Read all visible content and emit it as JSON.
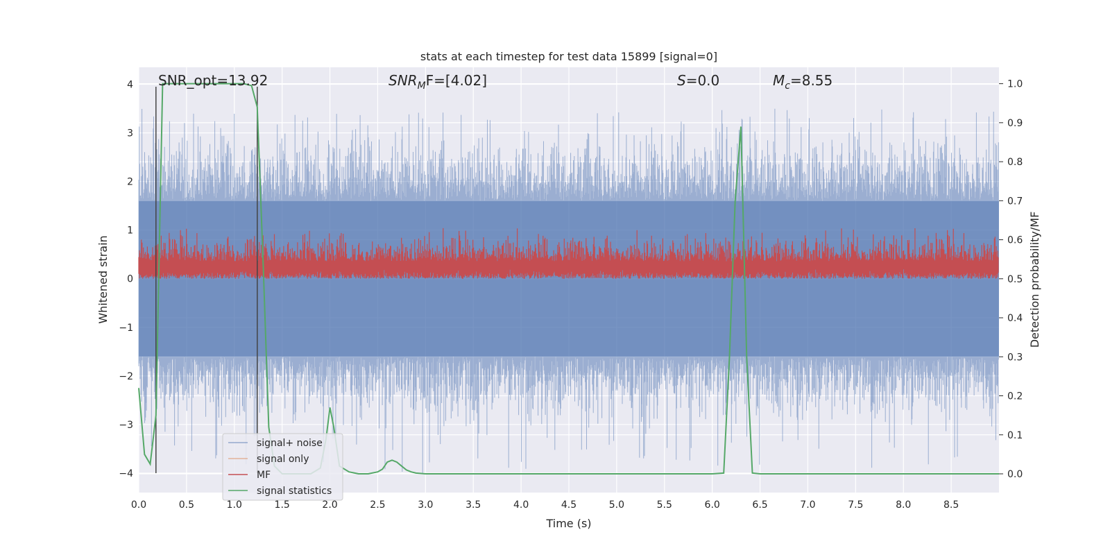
{
  "chart_data": {
    "type": "line",
    "title": "stats at each timestep for test data 15899 [signal=0]",
    "xlabel": "Time (s)",
    "ylabel": "Whitened strain",
    "y2label": "Detection probability/MF",
    "xlim": [
      0.0,
      9.0
    ],
    "ylim": [
      -4.4,
      4.35
    ],
    "y2lim": [
      -0.048,
      1.042
    ],
    "xticks": [
      0.0,
      0.5,
      1.0,
      1.5,
      2.0,
      2.5,
      3.0,
      3.5,
      4.0,
      4.5,
      5.0,
      5.5,
      6.0,
      6.5,
      7.0,
      7.5,
      8.0,
      8.5
    ],
    "xtick_labels": [
      "0.0",
      "0.5",
      "1.0",
      "1.5",
      "2.0",
      "2.5",
      "3.0",
      "3.5",
      "4.0",
      "4.5",
      "5.0",
      "5.5",
      "6.0",
      "6.5",
      "7.0",
      "7.5",
      "8.0",
      "8.5"
    ],
    "yticks": [
      -4,
      -3,
      -2,
      -1,
      0,
      1,
      2,
      3,
      4
    ],
    "ytick_labels": [
      "−4",
      "−3",
      "−2",
      "−1",
      "0",
      "1",
      "2",
      "3",
      "4"
    ],
    "y2ticks": [
      0.0,
      0.1,
      0.2,
      0.3,
      0.4,
      0.5,
      0.6,
      0.7,
      0.8,
      0.9,
      1.0
    ],
    "y2tick_labels": [
      "0.0",
      "0.1",
      "0.2",
      "0.3",
      "0.4",
      "0.5",
      "0.6",
      "0.7",
      "0.8",
      "0.9",
      "1.0"
    ],
    "grid": true,
    "legend_position": "lower-left",
    "annotations": [
      {
        "base": "SNR_opt=13.92"
      },
      {
        "base": "SNR",
        "sub": "M",
        "rest": "F=[4.02]",
        "italic": true
      },
      {
        "base": "S",
        "rest": "=0.0",
        "italic": true
      },
      {
        "base": "M",
        "sub": "c",
        "rest": "=8.55",
        "italic": true
      }
    ],
    "vertical_markers": [
      0.18,
      1.24
    ],
    "series": [
      {
        "name": "signal+ noise",
        "color": "#4c72b0",
        "axis": "left",
        "description": "dense whitened noise band",
        "band_core": [
          -1.6,
          1.6
        ],
        "spike_range": [
          -4.0,
          3.5
        ]
      },
      {
        "name": "signal only",
        "color": "#dd8452",
        "axis": "left",
        "values": []
      },
      {
        "name": "MF",
        "color": "#c44e52",
        "axis": "right",
        "band_range": [
          0.5,
          0.63
        ],
        "peak": 0.63
      },
      {
        "name": "signal statistics",
        "color": "#55a868",
        "axis": "right",
        "x": [
          0.0,
          0.06,
          0.12,
          0.18,
          0.25,
          0.32,
          0.5,
          0.8,
          1.0,
          1.1,
          1.18,
          1.24,
          1.3,
          1.36,
          1.42,
          1.5,
          1.6,
          1.8,
          1.9,
          1.96,
          2.0,
          2.04,
          2.1,
          2.2,
          2.3,
          2.4,
          2.5,
          2.55,
          2.6,
          2.65,
          2.7,
          2.75,
          2.8,
          2.85,
          2.9,
          3.0,
          3.5,
          4.0,
          5.0,
          6.0,
          6.12,
          6.18,
          6.24,
          6.3,
          6.36,
          6.42,
          6.5,
          7.0,
          8.0,
          9.0
        ],
        "values": [
          0.22,
          0.05,
          0.025,
          0.15,
          1.0,
          1.0,
          1.0,
          1.0,
          1.0,
          1.0,
          0.995,
          0.94,
          0.55,
          0.12,
          0.02,
          0.0,
          0.0,
          0.0,
          0.015,
          0.09,
          0.17,
          0.12,
          0.02,
          0.005,
          0.0,
          0.0,
          0.005,
          0.012,
          0.03,
          0.035,
          0.03,
          0.02,
          0.01,
          0.005,
          0.002,
          0.0,
          0.0,
          0.0,
          0.0,
          0.0,
          0.002,
          0.3,
          0.7,
          0.89,
          0.3,
          0.002,
          0.0,
          0.0,
          0.0,
          0.0
        ]
      }
    ]
  }
}
